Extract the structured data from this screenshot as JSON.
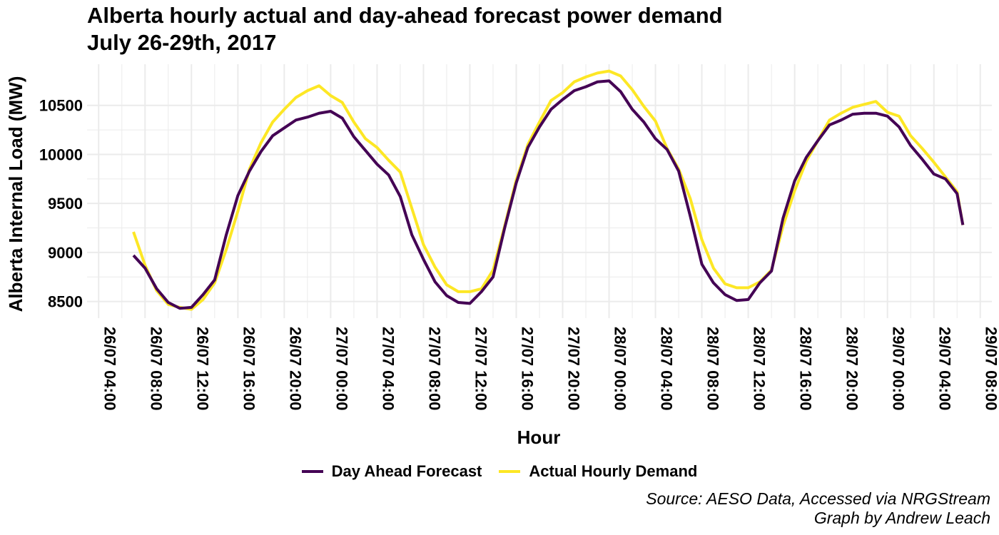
{
  "colors": {
    "forecast": "#440154",
    "actual": "#FDE725",
    "grid": "#EBEBEB",
    "background": "#FFFFFF"
  },
  "chart_data": {
    "type": "line",
    "title": "Alberta hourly actual and day-ahead forecast power demand",
    "subtitle": "July 26-29th, 2017",
    "xlabel": "Hour",
    "ylabel": "Alberta Internal Load (MW)",
    "caption": [
      "Source: AESO Data, Accessed via NRGStream",
      "Graph by Andrew Leach"
    ],
    "grid": true,
    "legend_position": "bottom",
    "x_ticks": [
      "26/07 04:00",
      "26/07 08:00",
      "26/07 12:00",
      "26/07 16:00",
      "26/07 20:00",
      "27/07 00:00",
      "27/07 04:00",
      "27/07 08:00",
      "27/07 12:00",
      "27/07 16:00",
      "27/07 20:00",
      "28/07 00:00",
      "28/07 04:00",
      "28/07 08:00",
      "28/07 12:00",
      "28/07 16:00",
      "28/07 20:00",
      "29/07 00:00",
      "29/07 04:00",
      "29/07 08:00"
    ],
    "y_ticks": [
      8500,
      9000,
      9500,
      10000,
      10500
    ],
    "xlim": [
      "2017-07-26 03:00",
      "2017-07-29 09:00"
    ],
    "ylim": [
      8330,
      10920
    ],
    "x": [
      "2017-07-26 07:00",
      "2017-07-26 08:00",
      "2017-07-26 09:00",
      "2017-07-26 10:00",
      "2017-07-26 11:00",
      "2017-07-26 12:00",
      "2017-07-26 13:00",
      "2017-07-26 14:00",
      "2017-07-26 15:00",
      "2017-07-26 16:00",
      "2017-07-26 17:00",
      "2017-07-26 18:00",
      "2017-07-26 19:00",
      "2017-07-26 20:00",
      "2017-07-26 21:00",
      "2017-07-26 22:00",
      "2017-07-26 23:00",
      "2017-07-27 00:00",
      "2017-07-27 01:00",
      "2017-07-27 02:00",
      "2017-07-27 03:00",
      "2017-07-27 04:00",
      "2017-07-27 05:00",
      "2017-07-27 06:00",
      "2017-07-27 07:00",
      "2017-07-27 08:00",
      "2017-07-27 09:00",
      "2017-07-27 10:00",
      "2017-07-27 11:00",
      "2017-07-27 12:00",
      "2017-07-27 13:00",
      "2017-07-27 14:00",
      "2017-07-27 15:00",
      "2017-07-27 16:00",
      "2017-07-27 17:00",
      "2017-07-27 18:00",
      "2017-07-27 19:00",
      "2017-07-27 20:00",
      "2017-07-27 21:00",
      "2017-07-27 22:00",
      "2017-07-27 23:00",
      "2017-07-28 00:00",
      "2017-07-28 01:00",
      "2017-07-28 02:00",
      "2017-07-28 03:00",
      "2017-07-28 04:00",
      "2017-07-28 05:00",
      "2017-07-28 06:00",
      "2017-07-28 07:00",
      "2017-07-28 08:00",
      "2017-07-28 09:00",
      "2017-07-28 10:00",
      "2017-07-28 11:00",
      "2017-07-28 12:00",
      "2017-07-28 13:00",
      "2017-07-28 14:00",
      "2017-07-28 15:00",
      "2017-07-28 16:00",
      "2017-07-28 17:00",
      "2017-07-28 18:00",
      "2017-07-28 19:00",
      "2017-07-28 20:00",
      "2017-07-28 21:00",
      "2017-07-28 22:00",
      "2017-07-28 23:00",
      "2017-07-29 00:00",
      "2017-07-29 01:00",
      "2017-07-29 02:00",
      "2017-07-29 03:00",
      "2017-07-29 04:00",
      "2017-07-29 05:00",
      "2017-07-29 06:00"
    ],
    "series": [
      {
        "name": "Day Ahead Forecast",
        "values": [
          8970,
          8840,
          8630,
          8490,
          8430,
          8440,
          8570,
          8720,
          9180,
          9580,
          9830,
          10030,
          10190,
          10270,
          10350,
          10380,
          10420,
          10440,
          10370,
          10180,
          10040,
          9900,
          9790,
          9570,
          9180,
          8930,
          8700,
          8560,
          8490,
          8480,
          8600,
          8750,
          9250,
          9710,
          10070,
          10280,
          10460,
          10560,
          10650,
          10690,
          10740,
          10750,
          10640,
          10460,
          10330,
          10160,
          10050,
          9830,
          9370,
          8880,
          8690,
          8570,
          8510,
          8520,
          8690,
          8810,
          9350,
          9730,
          9970,
          10140,
          10300,
          10350,
          10410,
          10420,
          10420,
          10390,
          10280,
          10090,
          9950,
          9800,
          9750,
          9600
        ]
      },
      {
        "name": "Actual Hourly Demand",
        "values": [
          9210,
          8870,
          8610,
          8470,
          8440,
          8420,
          8520,
          8690,
          9030,
          9420,
          9850,
          10120,
          10330,
          10460,
          10580,
          10650,
          10700,
          10600,
          10530,
          10330,
          10160,
          10070,
          9940,
          9820,
          9450,
          9080,
          8850,
          8670,
          8600,
          8600,
          8630,
          8820,
          9270,
          9740,
          10100,
          10330,
          10550,
          10630,
          10740,
          10790,
          10830,
          10850,
          10800,
          10660,
          10490,
          10340,
          10060,
          9850,
          9550,
          9130,
          8840,
          8680,
          8640,
          8640,
          8700,
          8820,
          9270,
          9630,
          9930,
          10140,
          10350,
          10420,
          10480,
          10510,
          10540,
          10430,
          10390,
          10190,
          10060,
          9920,
          9770,
          9620
        ]
      }
    ],
    "end_value": 9280
  }
}
